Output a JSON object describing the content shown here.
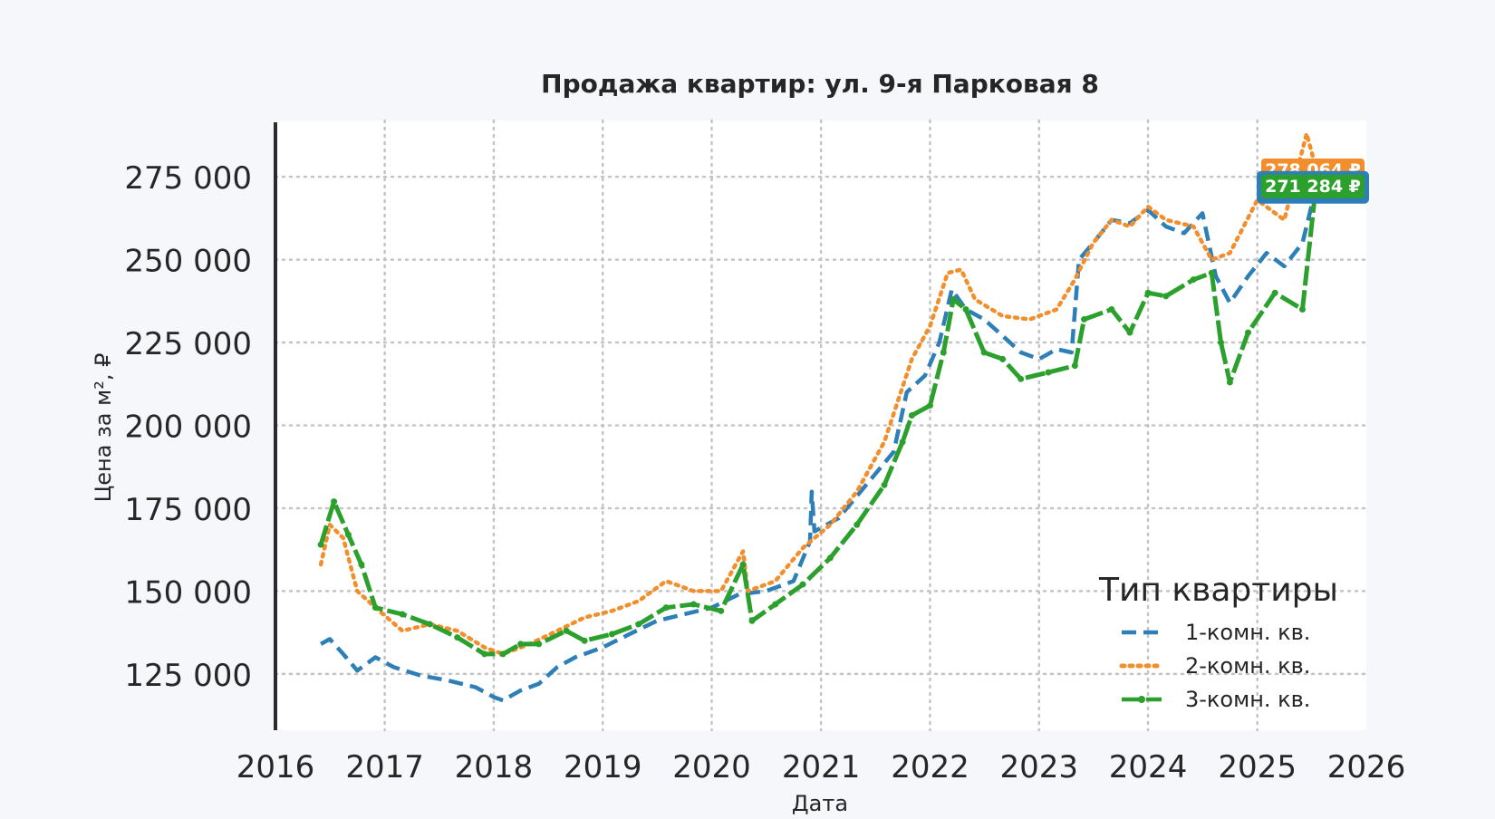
{
  "chart_data": {
    "type": "line",
    "title": "Продажа квартир: ул. 9-я Парковая 8",
    "xlabel": "Дата",
    "ylabel": "Цена за м², ₽",
    "xlim": [
      "2016-01-01",
      "2026-01-01"
    ],
    "ylim": [
      108000,
      292000
    ],
    "x_ticks": [
      "2016",
      "2017",
      "2018",
      "2019",
      "2020",
      "2021",
      "2022",
      "2023",
      "2024",
      "2025",
      "2026"
    ],
    "y_ticks": [
      125000,
      150000,
      175000,
      200000,
      225000,
      250000,
      275000
    ],
    "y_tick_labels": [
      "125 000",
      "150 000",
      "175 000",
      "200 000",
      "225 000",
      "250 000",
      "275 000"
    ],
    "grid": true,
    "legend": {
      "title": "Тип квартиры",
      "position": "lower-right"
    },
    "series": [
      {
        "name": "1-комн. кв.",
        "color": "#2e7fb8",
        "style": "dashed",
        "points": [
          [
            "2016-06-01",
            134000
          ],
          [
            "2016-07-01",
            135500
          ],
          [
            "2016-08-15",
            131000
          ],
          [
            "2016-10-01",
            126000
          ],
          [
            "2016-12-01",
            130000
          ],
          [
            "2017-02-01",
            127000
          ],
          [
            "2017-05-01",
            124500
          ],
          [
            "2017-08-01",
            123000
          ],
          [
            "2017-11-01",
            121000
          ],
          [
            "2018-01-01",
            118000
          ],
          [
            "2018-02-01",
            117000
          ],
          [
            "2018-04-01",
            120000
          ],
          [
            "2018-06-01",
            122000
          ],
          [
            "2018-08-01",
            127000
          ],
          [
            "2018-10-01",
            130000
          ],
          [
            "2019-01-01",
            133000
          ],
          [
            "2019-04-01",
            137000
          ],
          [
            "2019-07-01",
            141000
          ],
          [
            "2019-10-01",
            143000
          ],
          [
            "2020-01-01",
            145000
          ],
          [
            "2020-04-01",
            149000
          ],
          [
            "2020-07-01",
            150000
          ],
          [
            "2020-10-01",
            153000
          ],
          [
            "2020-11-25",
            165000
          ],
          [
            "2020-12-01",
            180000
          ],
          [
            "2020-12-10",
            168000
          ],
          [
            "2021-03-01",
            172000
          ],
          [
            "2021-06-01",
            182000
          ],
          [
            "2021-09-01",
            192000
          ],
          [
            "2021-10-15",
            210000
          ],
          [
            "2021-12-15",
            215000
          ],
          [
            "2022-02-01",
            225000
          ],
          [
            "2022-03-15",
            241000
          ],
          [
            "2022-05-01",
            235000
          ],
          [
            "2022-07-01",
            232000
          ],
          [
            "2022-09-01",
            227000
          ],
          [
            "2022-11-01",
            222000
          ],
          [
            "2023-01-01",
            220000
          ],
          [
            "2023-03-01",
            223000
          ],
          [
            "2023-04-20",
            222000
          ],
          [
            "2023-05-15",
            250000
          ],
          [
            "2023-07-01",
            255000
          ],
          [
            "2023-09-01",
            262000
          ],
          [
            "2023-11-01",
            261000
          ],
          [
            "2024-01-01",
            265000
          ],
          [
            "2024-03-01",
            260000
          ],
          [
            "2024-05-01",
            258000
          ],
          [
            "2024-07-01",
            264000
          ],
          [
            "2024-08-15",
            245000
          ],
          [
            "2024-10-01",
            237000
          ],
          [
            "2024-12-01",
            245000
          ],
          [
            "2025-02-01",
            252000
          ],
          [
            "2025-04-01",
            248000
          ],
          [
            "2025-06-01",
            255000
          ],
          [
            "2025-07-15",
            271284
          ]
        ]
      },
      {
        "name": "2-комн. кв.",
        "color": "#f28e2b",
        "style": "dotted",
        "points": [
          [
            "2016-06-01",
            158000
          ],
          [
            "2016-07-01",
            170000
          ],
          [
            "2016-08-15",
            166000
          ],
          [
            "2016-10-01",
            150000
          ],
          [
            "2016-12-01",
            145000
          ],
          [
            "2017-03-01",
            138000
          ],
          [
            "2017-06-01",
            140000
          ],
          [
            "2017-09-01",
            138000
          ],
          [
            "2017-12-01",
            133000
          ],
          [
            "2018-02-01",
            131000
          ],
          [
            "2018-05-01",
            134000
          ],
          [
            "2018-08-01",
            138000
          ],
          [
            "2018-11-01",
            142000
          ],
          [
            "2019-02-01",
            144000
          ],
          [
            "2019-05-01",
            147000
          ],
          [
            "2019-08-01",
            153000
          ],
          [
            "2019-11-01",
            150000
          ],
          [
            "2020-02-01",
            150000
          ],
          [
            "2020-04-15",
            162000
          ],
          [
            "2020-05-01",
            150000
          ],
          [
            "2020-08-01",
            153000
          ],
          [
            "2020-11-01",
            163000
          ],
          [
            "2021-02-01",
            170000
          ],
          [
            "2021-05-01",
            180000
          ],
          [
            "2021-08-01",
            195000
          ],
          [
            "2021-11-01",
            220000
          ],
          [
            "2022-01-01",
            230000
          ],
          [
            "2022-03-01",
            246000
          ],
          [
            "2022-04-15",
            247000
          ],
          [
            "2022-06-01",
            238000
          ],
          [
            "2022-09-01",
            233000
          ],
          [
            "2022-12-01",
            232000
          ],
          [
            "2023-03-01",
            235000
          ],
          [
            "2023-05-01",
            244000
          ],
          [
            "2023-07-01",
            255000
          ],
          [
            "2023-09-01",
            262000
          ],
          [
            "2023-11-01",
            260000
          ],
          [
            "2024-01-01",
            266000
          ],
          [
            "2024-03-01",
            262000
          ],
          [
            "2024-06-01",
            260000
          ],
          [
            "2024-08-01",
            250000
          ],
          [
            "2024-10-01",
            252000
          ],
          [
            "2025-01-01",
            268000
          ],
          [
            "2025-04-01",
            262000
          ],
          [
            "2025-06-15",
            288000
          ],
          [
            "2025-07-15",
            278064
          ]
        ]
      },
      {
        "name": "3-комн. кв.",
        "color": "#2ca02c",
        "style": "dash-dot-marker",
        "points": [
          [
            "2016-06-01",
            164000
          ],
          [
            "2016-07-15",
            177000
          ],
          [
            "2016-09-01",
            167000
          ],
          [
            "2016-10-15",
            158000
          ],
          [
            "2016-12-01",
            145000
          ],
          [
            "2017-03-01",
            143000
          ],
          [
            "2017-06-01",
            140000
          ],
          [
            "2017-09-01",
            136000
          ],
          [
            "2017-12-01",
            131000
          ],
          [
            "2018-02-01",
            131000
          ],
          [
            "2018-04-01",
            134000
          ],
          [
            "2018-06-01",
            134000
          ],
          [
            "2018-09-01",
            138000
          ],
          [
            "2018-11-01",
            135000
          ],
          [
            "2019-02-01",
            137000
          ],
          [
            "2019-05-01",
            140000
          ],
          [
            "2019-08-01",
            145000
          ],
          [
            "2019-11-01",
            146000
          ],
          [
            "2020-02-01",
            144000
          ],
          [
            "2020-04-15",
            158000
          ],
          [
            "2020-05-15",
            141000
          ],
          [
            "2020-08-01",
            146000
          ],
          [
            "2020-11-01",
            152000
          ],
          [
            "2021-02-01",
            160000
          ],
          [
            "2021-05-01",
            170000
          ],
          [
            "2021-08-01",
            182000
          ],
          [
            "2021-10-01",
            195000
          ],
          [
            "2021-11-01",
            203000
          ],
          [
            "2022-01-01",
            206000
          ],
          [
            "2022-02-15",
            222000
          ],
          [
            "2022-03-20",
            238000
          ],
          [
            "2022-05-01",
            235000
          ],
          [
            "2022-07-01",
            222000
          ],
          [
            "2022-09-01",
            220000
          ],
          [
            "2022-11-01",
            214000
          ],
          [
            "2023-02-01",
            216000
          ],
          [
            "2023-05-01",
            218000
          ],
          [
            "2023-06-01",
            232000
          ],
          [
            "2023-09-01",
            235000
          ],
          [
            "2023-11-01",
            228000
          ],
          [
            "2024-01-01",
            240000
          ],
          [
            "2024-03-01",
            239000
          ],
          [
            "2024-06-01",
            244000
          ],
          [
            "2024-08-01",
            246000
          ],
          [
            "2024-09-01",
            225000
          ],
          [
            "2024-10-01",
            213000
          ],
          [
            "2024-12-01",
            228000
          ],
          [
            "2025-03-01",
            240000
          ],
          [
            "2025-06-01",
            235000
          ],
          [
            "2025-07-15",
            271284
          ]
        ]
      }
    ],
    "annotations": [
      {
        "text": "278 064 ₽",
        "series": "2-комн. кв.",
        "bg": "#f28e2b"
      },
      {
        "text": "271 284 ₽",
        "series": "3-комн. кв.",
        "bg": "#2ca02c",
        "border": "#2e7fb8"
      }
    ]
  }
}
